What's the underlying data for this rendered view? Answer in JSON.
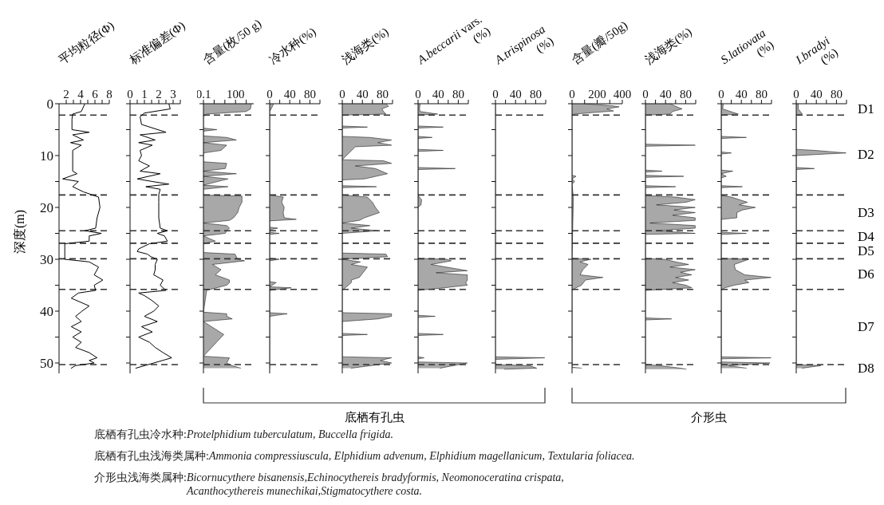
{
  "chart_data": [
    {
      "type": "line",
      "title": "平均粒径(Φ)",
      "ylabel": "深度(m)",
      "orientation": "horizontal",
      "color": "#000000",
      "x": [
        0,
        1.5,
        2,
        3,
        5,
        5.5,
        6,
        7,
        7.5,
        8,
        9,
        10,
        13,
        13.5,
        14.5,
        15,
        16,
        17,
        18,
        20,
        22,
        24,
        24.5,
        25,
        25.5,
        26.5,
        27,
        28,
        30,
        30.5,
        31.5,
        33,
        34,
        35,
        36,
        36.5,
        37.5,
        39,
        40,
        41,
        42,
        43,
        44,
        45,
        46,
        47,
        48,
        49,
        49.5,
        50,
        50.5,
        51
      ],
      "values": [
        4.6,
        4.1,
        2.9,
        2.8,
        2.8,
        5.2,
        2.9,
        4.4,
        2.6,
        4.1,
        2.9,
        2.9,
        2.9,
        3.5,
        1.5,
        3.7,
        2.9,
        4.4,
        6.5,
        6.7,
        6.3,
        6.1,
        4.6,
        6.9,
        5.2,
        5.2,
        1.8,
        1.8,
        1.8,
        5.2,
        6.5,
        5.9,
        7.1,
        5.9,
        6.1,
        3.7,
        2.7,
        5.2,
        4.2,
        3.3,
        4.1,
        2.7,
        4.1,
        2.9,
        4.1,
        3.3,
        5.2,
        6.3,
        5.2,
        5.9,
        3.3,
        2.7
      ],
      "xlim": [
        1,
        8
      ],
      "xticks": [
        2,
        {
          "value": 3,
          "label": null
        },
        4,
        {
          "value": 5,
          "label": null
        },
        6,
        {
          "value": 7,
          "label": null
        },
        8
      ],
      "ylim": [
        52,
        0
      ],
      "yticks": [
        0,
        {
          "value": 5,
          "label": null
        },
        10,
        {
          "value": 15,
          "label": null
        },
        20,
        {
          "value": 25,
          "label": null
        },
        30,
        {
          "value": 35,
          "label": null
        },
        40,
        {
          "value": 45,
          "label": null
        },
        50
      ],
      "ref_lines": [
        {
          "axis": "y",
          "value": 2.2,
          "line_style": "dashed"
        },
        {
          "axis": "y",
          "value": 17.6,
          "line_style": "dashed"
        },
        {
          "axis": "y",
          "value": 24.5,
          "line_style": "dashed"
        },
        {
          "axis": "y",
          "value": 26.9,
          "line_style": "dashed"
        },
        {
          "axis": "y",
          "value": 29.9,
          "line_style": "dashed"
        },
        {
          "axis": "y",
          "value": 35.8,
          "line_style": "dashed"
        },
        {
          "axis": "y",
          "value": 50.3,
          "line_style": "dashed"
        }
      ],
      "annotations": [
        "底栖有孔虫冷水种:Protelphidium tuberculatum, Buccella frigida.",
        "底栖有孔虫浅海类属种:Ammonia compressiuscula, Elphidium advenum, Elphidium magellanicum, Textularia foliacea.",
        "介形虫浅海类属种:Bicornucythere bisanensis,Echinocythereis bradyformis, Neomonoceratina crispata,\nAcanthocythereis munechikai,Stigmatocythere costa."
      ]
    },
    {
      "type": "line",
      "title": "标准偏差(Φ)",
      "orientation": "horizontal",
      "color": "#000000",
      "tick_labels": "x",
      "x": [
        0,
        1,
        1.8,
        2.5,
        4,
        5.5,
        6,
        7,
        7.5,
        8,
        9,
        10,
        11,
        12,
        13,
        13.5,
        14.5,
        15,
        15.5,
        16,
        16.5,
        17.5,
        19,
        22,
        24,
        24.5,
        25,
        25.5,
        26.5,
        27,
        28,
        28.5,
        29,
        29.5,
        30,
        31,
        32,
        33,
        34,
        35,
        36,
        36.5,
        37,
        38,
        39,
        40,
        41,
        42,
        43,
        44,
        45,
        46,
        47,
        48,
        49,
        50,
        51
      ],
      "values": [
        2.7,
        2.8,
        1.0,
        0.7,
        0.8,
        2.5,
        0.7,
        1.75,
        0.6,
        1.55,
        0.7,
        0.8,
        0.6,
        1.35,
        0.7,
        2.1,
        0.5,
        1.55,
        2.7,
        1.1,
        2.1,
        2.0,
        2.0,
        2.0,
        2.1,
        2.6,
        1.9,
        2.4,
        2.6,
        1.35,
        0.6,
        0.5,
        1.2,
        1.45,
        1.9,
        1.75,
        1.75,
        1.65,
        2.3,
        2.1,
        2.5,
        0.6,
        1.0,
        1.55,
        2.0,
        1.65,
        1.0,
        1.9,
        0.8,
        1.55,
        0.6,
        1.35,
        1.75,
        2.3,
        2.9,
        1.65,
        0.4
      ],
      "xlim": [
        0,
        3.5
      ],
      "xticks": [
        0,
        {
          "value": 0.5,
          "label": null
        },
        1,
        {
          "value": 1.5,
          "label": null
        },
        2,
        {
          "value": 2.5,
          "label": null
        },
        3,
        {
          "value": 3.5,
          "label": null
        }
      ],
      "ylim": [
        52,
        0
      ],
      "yticks": [
        0,
        {
          "value": 5,
          "label": null
        },
        10,
        {
          "value": 15,
          "label": null
        },
        20,
        {
          "value": 25,
          "label": null
        },
        30,
        {
          "value": 35,
          "label": null
        },
        40,
        {
          "value": 45,
          "label": null
        },
        50
      ],
      "ref_lines": [
        {
          "axis": "y",
          "value": 2.2,
          "line_style": "dashed"
        },
        {
          "axis": "y",
          "value": 17.6,
          "line_style": "dashed"
        },
        {
          "axis": "y",
          "value": 24.5,
          "line_style": "dashed"
        },
        {
          "axis": "y",
          "value": 26.9,
          "line_style": "dashed"
        },
        {
          "axis": "y",
          "value": 29.9,
          "line_style": "dashed"
        },
        {
          "axis": "y",
          "value": 35.8,
          "line_style": "dashed"
        },
        {
          "axis": "y",
          "value": 50.3,
          "line_style": "dashed"
        }
      ]
    },
    {
      "type": "area",
      "title": "含量(枚/50 g)",
      "orientation": "horizontal",
      "color": "#000000",
      "tick_labels": "x",
      "log": "x",
      "x": [
        0,
        1,
        1.5,
        2,
        2.5,
        4.7,
        5,
        5.3,
        6.2,
        6.5,
        7,
        7.5,
        8,
        9,
        9.5,
        11.2,
        11.5,
        12.5,
        13,
        13.5,
        14,
        14.5,
        15.7,
        16,
        16.5,
        17.6,
        17.8,
        19,
        20,
        21,
        22,
        22.5,
        23,
        23.5,
        24,
        24.5,
        25,
        25.5,
        26.5,
        27,
        28.7,
        29,
        30,
        30.3,
        31,
        32,
        33,
        34,
        34.5,
        35,
        36,
        40.2,
        40.5,
        41,
        41.5,
        42,
        44.5,
        48.7,
        49,
        50,
        50.5,
        51
      ],
      "values": [
        3000,
        2500,
        1000,
        0.2,
        0.1,
        0.1,
        1.8,
        0.1,
        0.1,
        15,
        120,
        0.1,
        15,
        4.4,
        0.1,
        0.1,
        15,
        11,
        0.1,
        120,
        0.1,
        20,
        0.1,
        20,
        0.1,
        0.1,
        400,
        400,
        220,
        160,
        65,
        27,
        0.1,
        15,
        27,
        15,
        11,
        0.1,
        1.3,
        0.1,
        0.1,
        90,
        160,
        700,
        0.7,
        4.4,
        1.3,
        27,
        27,
        15,
        0.2,
        0.1,
        15,
        15,
        50,
        0.1,
        8,
        0.1,
        27,
        15,
        50,
        300
      ],
      "xlim": [
        0.1,
        5000
      ],
      "xticks": [
        0.1,
        {
          "value": 1,
          "label": null
        },
        {
          "value": 10,
          "label": null
        },
        100,
        {
          "value": 1000,
          "label": null
        }
      ],
      "ylim": [
        52,
        0
      ],
      "yticks": [
        0,
        {
          "value": 5,
          "label": null
        },
        10,
        {
          "value": 15,
          "label": null
        },
        20,
        {
          "value": 25,
          "label": null
        },
        30,
        {
          "value": 35,
          "label": null
        },
        40,
        {
          "value": 45,
          "label": null
        },
        50
      ],
      "ref_lines": [
        {
          "axis": "y",
          "value": 2.2,
          "line_style": "dashed"
        },
        {
          "axis": "y",
          "value": 17.6,
          "line_style": "dashed"
        },
        {
          "axis": "y",
          "value": 24.5,
          "line_style": "dashed"
        },
        {
          "axis": "y",
          "value": 26.9,
          "line_style": "dashed"
        },
        {
          "axis": "y",
          "value": 29.9,
          "line_style": "dashed"
        },
        {
          "axis": "y",
          "value": 35.8,
          "line_style": "dashed"
        },
        {
          "axis": "y",
          "value": 50.3,
          "line_style": "dashed"
        }
      ],
      "annotations": [
        "底栖有孔虫"
      ]
    },
    {
      "type": "area",
      "title": "冷水种(%)",
      "orientation": "horizontal",
      "color": "#000000",
      "tick_labels": "x",
      "x": [
        0,
        1,
        1.5,
        17.6,
        18,
        19,
        20,
        21,
        22,
        22.3,
        22.6,
        23.8,
        24,
        24.3,
        24.8,
        25,
        25.2,
        29.8,
        30,
        30.3,
        34.3,
        34.5,
        35.3,
        35.5,
        36,
        40.3,
        40.5,
        41,
        51
      ],
      "values": [
        8,
        3,
        0,
        0,
        27,
        24,
        29,
        27,
        29,
        53,
        0,
        0,
        16,
        0,
        0,
        19,
        0,
        0,
        19,
        0,
        0,
        13,
        0,
        43,
        0,
        0,
        35,
        0,
        0
      ],
      "xlim": [
        0,
        100
      ],
      "xticks": [
        0,
        {
          "value": 20,
          "label": null
        },
        40,
        {
          "value": 60,
          "label": null
        },
        80,
        {
          "value": 100,
          "label": null
        }
      ],
      "ylim": [
        52,
        0
      ],
      "yticks": [
        0,
        {
          "value": 5,
          "label": null
        },
        10,
        {
          "value": 15,
          "label": null
        },
        20,
        {
          "value": 25,
          "label": null
        },
        30,
        {
          "value": 35,
          "label": null
        },
        40,
        {
          "value": 45,
          "label": null
        },
        50
      ],
      "ref_lines": [
        {
          "axis": "y",
          "value": 2.2,
          "line_style": "dashed"
        },
        {
          "axis": "y",
          "value": 17.6,
          "line_style": "dashed"
        },
        {
          "axis": "y",
          "value": 24.5,
          "line_style": "dashed"
        },
        {
          "axis": "y",
          "value": 26.9,
          "line_style": "dashed"
        },
        {
          "axis": "y",
          "value": 29.9,
          "line_style": "dashed"
        },
        {
          "axis": "y",
          "value": 35.8,
          "line_style": "dashed"
        },
        {
          "axis": "y",
          "value": 50.3,
          "line_style": "dashed"
        }
      ]
    },
    {
      "type": "area",
      "title": "浅海类(%)",
      "orientation": "horizontal",
      "color": "#000000",
      "tick_labels": "x",
      "x": [
        0,
        0.5,
        1,
        1.5,
        2,
        2.2,
        4.3,
        4.5,
        4.7,
        6.3,
        6.5,
        7,
        7.5,
        8,
        8.3,
        10.8,
        11,
        11.5,
        12,
        12.5,
        13.5,
        14.5,
        14.7,
        15.8,
        16,
        16.2,
        17.6,
        18,
        19,
        20,
        21,
        22,
        22.5,
        23,
        23.5,
        24,
        24.5,
        25,
        28.8,
        29,
        29.5,
        30,
        30.5,
        31,
        31.5,
        33.5,
        34,
        34.5,
        36,
        40.3,
        40.5,
        41,
        41.5,
        42,
        44.3,
        44.5,
        44.7,
        48.8,
        49,
        49.5,
        50,
        51
      ],
      "values": [
        87,
        92,
        79,
        82,
        87,
        0,
        0,
        50,
        0,
        0,
        55,
        98,
        71,
        98,
        26,
        0,
        82,
        98,
        26,
        66,
        90,
        44,
        0,
        0,
        68,
        0,
        0,
        50,
        60,
        66,
        74,
        44,
        34,
        0,
        55,
        18,
        71,
        0,
        0,
        87,
        90,
        0,
        36,
        18,
        50,
        34,
        18,
        18,
        0,
        0,
        98,
        98,
        71,
        0,
        0,
        50,
        0,
        0,
        98,
        76,
        98,
        18
      ],
      "xlim": [
        0,
        100
      ],
      "xticks": [
        0,
        {
          "value": 20,
          "label": null
        },
        40,
        {
          "value": 60,
          "label": null
        },
        80,
        {
          "value": 100,
          "label": null
        }
      ],
      "ylim": [
        52,
        0
      ],
      "yticks": [
        0,
        {
          "value": 5,
          "label": null
        },
        10,
        {
          "value": 15,
          "label": null
        },
        20,
        {
          "value": 25,
          "label": null
        },
        30,
        {
          "value": 35,
          "label": null
        },
        40,
        {
          "value": 45,
          "label": null
        },
        50
      ],
      "ref_lines": [
        {
          "axis": "y",
          "value": 2.2,
          "line_style": "dashed"
        },
        {
          "axis": "y",
          "value": 17.6,
          "line_style": "dashed"
        },
        {
          "axis": "y",
          "value": 24.5,
          "line_style": "dashed"
        },
        {
          "axis": "y",
          "value": 26.9,
          "line_style": "dashed"
        },
        {
          "axis": "y",
          "value": 29.9,
          "line_style": "dashed"
        },
        {
          "axis": "y",
          "value": 35.8,
          "line_style": "dashed"
        },
        {
          "axis": "y",
          "value": 50.3,
          "line_style": "dashed"
        }
      ]
    },
    {
      "type": "area",
      "title": "A.beccarii vars.\n(%)",
      "orientation": "horizontal",
      "color": "#000000",
      "tick_labels": "x",
      "x": [
        0,
        1,
        1.5,
        2,
        2.2,
        4.3,
        4.5,
        4.7,
        6.3,
        6.5,
        6.7,
        8.8,
        9,
        9.2,
        12.3,
        12.5,
        12.7,
        17.7,
        18.5,
        19.5,
        20,
        29.8,
        30,
        30.3,
        31,
        32.2,
        32.6,
        33,
        34,
        34.5,
        35,
        35.5,
        36,
        40.8,
        41,
        41.2,
        44.3,
        44.5,
        44.7,
        48.8,
        49,
        49.2,
        49.8,
        50,
        51
      ],
      "values": [
        4,
        3,
        4,
        39,
        0,
        0,
        50,
        0,
        0,
        28,
        0,
        0,
        50,
        0,
        0,
        74,
        0,
        0,
        7,
        6,
        0,
        0,
        58,
        66,
        26,
        98,
        36,
        98,
        98,
        95,
        98,
        52,
        0,
        0,
        34,
        0,
        0,
        50,
        0,
        0,
        12,
        0,
        0,
        98,
        44
      ],
      "xlim": [
        0,
        100
      ],
      "xticks": [
        0,
        {
          "value": 20,
          "label": null
        },
        40,
        {
          "value": 60,
          "label": null
        },
        80,
        {
          "value": 100,
          "label": null
        }
      ],
      "ylim": [
        52,
        0
      ],
      "yticks": [
        0,
        {
          "value": 5,
          "label": null
        },
        10,
        {
          "value": 15,
          "label": null
        },
        20,
        {
          "value": 25,
          "label": null
        },
        30,
        {
          "value": 35,
          "label": null
        },
        40,
        {
          "value": 45,
          "label": null
        },
        50
      ],
      "ref_lines": [
        {
          "axis": "y",
          "value": 2.2,
          "line_style": "dashed"
        },
        {
          "axis": "y",
          "value": 17.6,
          "line_style": "dashed"
        },
        {
          "axis": "y",
          "value": 24.5,
          "line_style": "dashed"
        },
        {
          "axis": "y",
          "value": 26.9,
          "line_style": "dashed"
        },
        {
          "axis": "y",
          "value": 29.9,
          "line_style": "dashed"
        },
        {
          "axis": "y",
          "value": 35.8,
          "line_style": "dashed"
        },
        {
          "axis": "y",
          "value": 50.3,
          "line_style": "dashed"
        }
      ]
    },
    {
      "type": "area",
      "title": "A.trispinosa\n(%)",
      "orientation": "horizontal",
      "color": "#000000",
      "tick_labels": "x",
      "x": [
        0,
        48.8,
        49,
        49.3,
        50.3,
        50.5,
        51,
        51.2
      ],
      "values": [
        0,
        0,
        98,
        0,
        0,
        68,
        82,
        18
      ],
      "xlim": [
        0,
        100
      ],
      "xticks": [
        0,
        {
          "value": 20,
          "label": null
        },
        40,
        {
          "value": 60,
          "label": null
        },
        80,
        {
          "value": 100,
          "label": null
        }
      ],
      "ylim": [
        52,
        0
      ],
      "yticks": [
        0,
        {
          "value": 5,
          "label": null
        },
        10,
        {
          "value": 15,
          "label": null
        },
        20,
        {
          "value": 25,
          "label": null
        },
        30,
        {
          "value": 35,
          "label": null
        },
        40,
        {
          "value": 45,
          "label": null
        },
        50
      ],
      "ref_lines": [
        {
          "axis": "y",
          "value": 2.2,
          "line_style": "dashed"
        },
        {
          "axis": "y",
          "value": 17.6,
          "line_style": "dashed"
        },
        {
          "axis": "y",
          "value": 24.5,
          "line_style": "dashed"
        },
        {
          "axis": "y",
          "value": 26.9,
          "line_style": "dashed"
        },
        {
          "axis": "y",
          "value": 29.9,
          "line_style": "dashed"
        },
        {
          "axis": "y",
          "value": 35.8,
          "line_style": "dashed"
        },
        {
          "axis": "y",
          "value": 50.3,
          "line_style": "dashed"
        }
      ]
    },
    {
      "type": "area",
      "title": "含量(瓣/50g)",
      "orientation": "horizontal",
      "color": "#000000",
      "tick_labels": "x",
      "x": [
        0,
        0.4,
        0.6,
        1,
        1.4,
        1.7,
        2,
        2.2,
        13.8,
        14,
        14.5,
        15,
        15.5,
        18,
        19,
        29.8,
        30,
        30.5,
        31,
        32,
        33,
        33.5,
        34,
        35,
        35.5,
        36,
        50.8,
        51
      ],
      "values": [
        100,
        320,
        375,
        278,
        331,
        171,
        21,
        0,
        0,
        32,
        0,
        21,
        0,
        10,
        10,
        0,
        150,
        64,
        128,
        86,
        64,
        246,
        107,
        75,
        32,
        0,
        0,
        75
      ],
      "xlim": [
        0,
        400
      ],
      "xticks": [
        0,
        {
          "value": 100,
          "label": null
        },
        200,
        {
          "value": 300,
          "label": null
        },
        400
      ],
      "ylim": [
        52,
        0
      ],
      "yticks": [
        0,
        {
          "value": 5,
          "label": null
        },
        10,
        {
          "value": 15,
          "label": null
        },
        20,
        {
          "value": 25,
          "label": null
        },
        30,
        {
          "value": 35,
          "label": null
        },
        40,
        {
          "value": 45,
          "label": null
        },
        50
      ],
      "ref_lines": [
        {
          "axis": "y",
          "value": 2.2,
          "line_style": "dashed"
        },
        {
          "axis": "y",
          "value": 17.6,
          "line_style": "dashed"
        },
        {
          "axis": "y",
          "value": 24.5,
          "line_style": "dashed"
        },
        {
          "axis": "y",
          "value": 26.9,
          "line_style": "dashed"
        },
        {
          "axis": "y",
          "value": 29.9,
          "line_style": "dashed"
        },
        {
          "axis": "y",
          "value": 35.8,
          "line_style": "dashed"
        },
        {
          "axis": "y",
          "value": 50.3,
          "line_style": "dashed"
        }
      ],
      "annotations": [
        "介形虫"
      ]
    },
    {
      "type": "area",
      "title": "浅海类(%)",
      "orientation": "horizontal",
      "color": "#000000",
      "tick_labels": "x",
      "x": [
        0,
        0.5,
        1,
        1.5,
        2,
        2.2,
        7.8,
        8,
        8.2,
        12.8,
        13,
        13.2,
        13.8,
        14,
        14.2,
        15.8,
        16,
        16.2,
        17.7,
        18,
        18.5,
        19,
        19.5,
        20,
        20.5,
        21,
        21.5,
        22,
        22.5,
        23,
        23.5,
        24,
        24.5,
        25,
        25.2,
        29.8,
        30,
        30.5,
        31,
        31.5,
        32,
        32.5,
        33,
        33.5,
        34,
        34.5,
        35,
        35.5,
        36,
        41.3,
        41.5,
        41.7,
        50.3,
        50.5,
        51,
        51.2
      ],
      "values": [
        49,
        60,
        73,
        54,
        49,
        0,
        0,
        99,
        0,
        0,
        33,
        0,
        0,
        76,
        0,
        0,
        60,
        0,
        0,
        60,
        99,
        81,
        22,
        99,
        57,
        99,
        54,
        99,
        99,
        9,
        99,
        99,
        22,
        99,
        0,
        0,
        38,
        60,
        86,
        49,
        99,
        70,
        92,
        60,
        86,
        54,
        81,
        92,
        0,
        0,
        52,
        0,
        0,
        28,
        70,
        81
      ],
      "xlim": [
        0,
        100
      ],
      "xticks": [
        0,
        {
          "value": 20,
          "label": null
        },
        40,
        {
          "value": 60,
          "label": null
        },
        80,
        {
          "value": 100,
          "label": null
        }
      ],
      "ylim": [
        52,
        0
      ],
      "yticks": [
        0,
        {
          "value": 5,
          "label": null
        },
        10,
        {
          "value": 15,
          "label": null
        },
        20,
        {
          "value": 25,
          "label": null
        },
        30,
        {
          "value": 35,
          "label": null
        },
        40,
        {
          "value": 45,
          "label": null
        },
        50
      ],
      "ref_lines": [
        {
          "axis": "y",
          "value": 2.2,
          "line_style": "dashed"
        },
        {
          "axis": "y",
          "value": 17.6,
          "line_style": "dashed"
        },
        {
          "axis": "y",
          "value": 24.5,
          "line_style": "dashed"
        },
        {
          "axis": "y",
          "value": 26.9,
          "line_style": "dashed"
        },
        {
          "axis": "y",
          "value": 29.9,
          "line_style": "dashed"
        },
        {
          "axis": "y",
          "value": 35.8,
          "line_style": "dashed"
        },
        {
          "axis": "y",
          "value": 50.3,
          "line_style": "dashed"
        }
      ]
    },
    {
      "type": "area",
      "title": "S.latiovata\n(%)",
      "orientation": "horizontal",
      "color": "#000000",
      "tick_labels": "x",
      "x": [
        0,
        1,
        2,
        2.2,
        6.3,
        6.5,
        6.7,
        9.3,
        9.5,
        9.7,
        12.8,
        13,
        13.5,
        14,
        14.3,
        15.8,
        16,
        16.2,
        17.7,
        18,
        19,
        19.5,
        20,
        20.5,
        21,
        22,
        22.3,
        24.8,
        25,
        25.2,
        29.8,
        30,
        31,
        32,
        33,
        33.5,
        34,
        34.5,
        35,
        35.5,
        36,
        48.8,
        49,
        49.2,
        49.8,
        50,
        50.5,
        51
      ],
      "values": [
        4,
        3,
        34,
        0,
        0,
        50,
        0,
        0,
        20,
        0,
        0,
        23,
        0,
        10,
        0,
        0,
        42,
        0,
        0,
        20,
        52,
        36,
        68,
        42,
        31,
        31,
        0,
        0,
        50,
        0,
        0,
        55,
        26,
        28,
        47,
        99,
        47,
        55,
        26,
        7,
        0,
        0,
        99,
        0,
        0,
        97,
        15,
        50
      ],
      "xlim": [
        0,
        100
      ],
      "xticks": [
        0,
        {
          "value": 20,
          "label": null
        },
        40,
        {
          "value": 60,
          "label": null
        },
        80,
        {
          "value": 100,
          "label": null
        }
      ],
      "ylim": [
        52,
        0
      ],
      "yticks": [
        0,
        {
          "value": 5,
          "label": null
        },
        10,
        {
          "value": 15,
          "label": null
        },
        20,
        {
          "value": 25,
          "label": null
        },
        30,
        {
          "value": 35,
          "label": null
        },
        40,
        {
          "value": 45,
          "label": null
        },
        50
      ],
      "ref_lines": [
        {
          "axis": "y",
          "value": 2.2,
          "line_style": "dashed"
        },
        {
          "axis": "y",
          "value": 17.6,
          "line_style": "dashed"
        },
        {
          "axis": "y",
          "value": 24.5,
          "line_style": "dashed"
        },
        {
          "axis": "y",
          "value": 26.9,
          "line_style": "dashed"
        },
        {
          "axis": "y",
          "value": 29.9,
          "line_style": "dashed"
        },
        {
          "axis": "y",
          "value": 35.8,
          "line_style": "dashed"
        },
        {
          "axis": "y",
          "value": 50.3,
          "line_style": "dashed"
        }
      ]
    },
    {
      "type": "area",
      "title": "I.bradyi\n(%)",
      "orientation": "horizontal",
      "color": "#000000",
      "tick_labels": "x",
      "x": [
        0,
        1,
        2,
        2.2,
        8.8,
        9,
        9.5,
        10,
        12.3,
        12.5,
        12.7,
        50.3,
        50.5,
        51
      ],
      "values": [
        4,
        4,
        12,
        0,
        0,
        38,
        99,
        0,
        0,
        36,
        0,
        0,
        49,
        12
      ],
      "xlim": [
        0,
        100
      ],
      "xticks": [
        0,
        {
          "value": 20,
          "label": null
        },
        40,
        {
          "value": 60,
          "label": null
        },
        80,
        {
          "value": 100,
          "label": null
        }
      ],
      "ylim": [
        52,
        0
      ],
      "yticks": [
        0,
        {
          "value": 5,
          "label": null
        },
        10,
        {
          "value": 15,
          "label": null
        },
        20,
        {
          "value": 25,
          "label": null
        },
        30,
        {
          "value": 35,
          "label": null
        },
        40,
        {
          "value": 45,
          "label": null
        },
        50
      ],
      "ref_lines": [
        {
          "axis": "y",
          "value": 2.2,
          "line_style": "dashed"
        },
        {
          "axis": "y",
          "value": 17.6,
          "line_style": "dashed"
        },
        {
          "axis": "y",
          "value": 24.5,
          "line_style": "dashed"
        },
        {
          "axis": "y",
          "value": 26.9,
          "line_style": "dashed"
        },
        {
          "axis": "y",
          "value": 29.9,
          "line_style": "dashed"
        },
        {
          "axis": "y",
          "value": 35.8,
          "line_style": "dashed"
        },
        {
          "axis": "y",
          "value": 50.3,
          "line_style": "dashed"
        }
      ],
      "annotations": [
        "D1",
        "D2",
        "D3",
        "D4",
        "D5",
        "D6",
        "D7",
        "D8"
      ]
    }
  ]
}
